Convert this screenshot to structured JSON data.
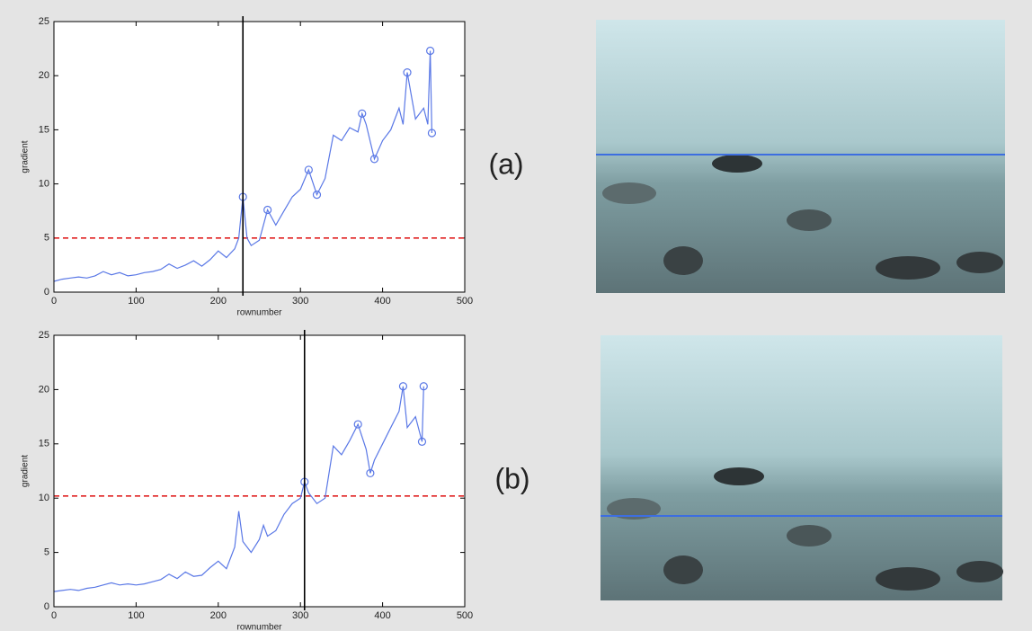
{
  "chart_data": [
    {
      "type": "line",
      "xlabel": "rownumber",
      "ylabel": "gradient",
      "label": "(a)",
      "xlim": [
        0,
        500
      ],
      "ylim": [
        0,
        25
      ],
      "xticks": [
        0,
        100,
        200,
        300,
        400,
        500
      ],
      "yticks": [
        0,
        5,
        10,
        15,
        20,
        25
      ],
      "vline": 230,
      "hline": 5,
      "vline_color": "#000000",
      "hline_color": "#e02020",
      "series": [
        {
          "color": "#5a78e6",
          "marker": "none",
          "linestyle": "solid",
          "x": [
            0,
            10,
            20,
            30,
            40,
            50,
            60,
            70,
            80,
            90,
            100,
            110,
            120,
            130,
            140,
            150,
            160,
            170,
            180,
            190,
            200,
            210,
            220,
            225,
            230,
            235,
            240,
            250,
            260,
            270,
            280,
            290,
            300,
            310,
            320,
            330,
            340,
            350,
            360,
            370,
            375,
            380,
            390,
            400,
            410,
            420,
            425,
            430,
            440,
            450,
            455,
            458,
            460
          ],
          "values": [
            1,
            1.2,
            1.3,
            1.4,
            1.3,
            1.5,
            1.9,
            1.6,
            1.8,
            1.5,
            1.6,
            1.8,
            1.9,
            2.1,
            2.6,
            2.2,
            2.5,
            2.9,
            2.4,
            3.0,
            3.8,
            3.2,
            4.0,
            5.0,
            8.8,
            5.0,
            4.3,
            4.8,
            7.6,
            6.2,
            7.5,
            8.8,
            9.5,
            11.3,
            9.0,
            10.5,
            14.5,
            14.0,
            15.2,
            14.8,
            16.5,
            15.5,
            12.3,
            14.0,
            15.0,
            17.0,
            15.5,
            20.3,
            16.0,
            17.0,
            15.5,
            22.3,
            14.7
          ]
        },
        {
          "color": "#5a78e6",
          "marker": "circle",
          "linestyle": "none",
          "x": [
            230,
            260,
            310,
            320,
            375,
            390,
            430,
            458,
            460
          ],
          "values": [
            8.8,
            7.6,
            11.3,
            9.0,
            16.5,
            12.3,
            20.3,
            22.3,
            14.7
          ]
        }
      ]
    },
    {
      "type": "line",
      "xlabel": "rownumber",
      "ylabel": "gradient",
      "label": "(b)",
      "xlim": [
        0,
        500
      ],
      "ylim": [
        0,
        25
      ],
      "xticks": [
        0,
        100,
        200,
        300,
        400,
        500
      ],
      "yticks": [
        0,
        5,
        10,
        15,
        20,
        25
      ],
      "vline": 305,
      "hline": 10.2,
      "vline_color": "#000000",
      "hline_color": "#e02020",
      "series": [
        {
          "color": "#5a78e6",
          "marker": "none",
          "linestyle": "solid",
          "x": [
            0,
            10,
            20,
            30,
            40,
            50,
            60,
            70,
            80,
            90,
            100,
            110,
            120,
            130,
            140,
            150,
            160,
            170,
            180,
            190,
            200,
            210,
            220,
            225,
            230,
            240,
            250,
            255,
            260,
            270,
            280,
            290,
            300,
            305,
            310,
            320,
            330,
            340,
            350,
            360,
            370,
            380,
            385,
            390,
            400,
            410,
            420,
            425,
            430,
            440,
            448,
            450
          ],
          "values": [
            1.4,
            1.5,
            1.6,
            1.5,
            1.7,
            1.8,
            2.0,
            2.2,
            2.0,
            2.1,
            2.0,
            2.1,
            2.3,
            2.5,
            3.0,
            2.6,
            3.2,
            2.8,
            2.9,
            3.6,
            4.2,
            3.5,
            5.5,
            8.8,
            6.0,
            5.0,
            6.2,
            7.5,
            6.5,
            7.0,
            8.5,
            9.5,
            10.0,
            11.5,
            10.5,
            9.5,
            10.0,
            14.8,
            14.0,
            15.3,
            16.8,
            14.5,
            12.3,
            13.5,
            15.0,
            16.5,
            18.0,
            20.3,
            16.5,
            17.5,
            15.2,
            20.3
          ]
        },
        {
          "color": "#5a78e6",
          "marker": "circle",
          "linestyle": "none",
          "x": [
            305,
            370,
            385,
            425,
            448,
            450
          ],
          "values": [
            11.5,
            16.8,
            12.3,
            20.3,
            15.2,
            20.3
          ]
        }
      ]
    }
  ]
}
